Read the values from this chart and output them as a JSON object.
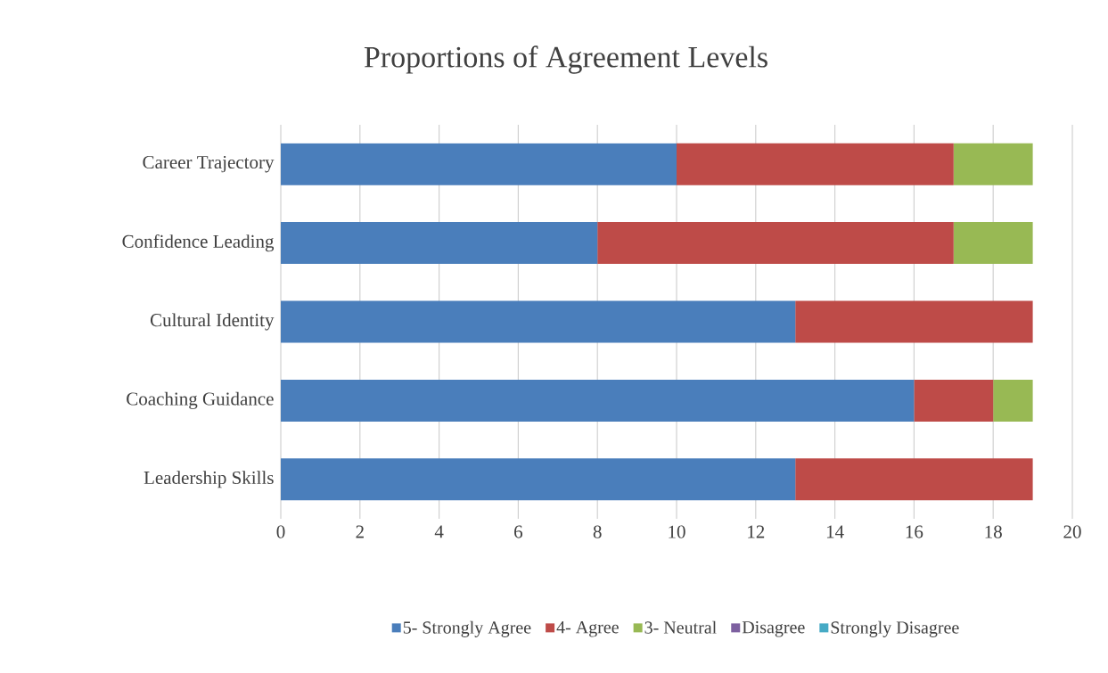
{
  "chart_data": {
    "type": "bar",
    "orientation": "horizontal",
    "stacked": true,
    "title": "Proportions of Agreement Levels",
    "categories": [
      "Career Trajectory",
      "Confidence Leading",
      "Cultural Identity",
      "Coaching Guidance",
      "Leadership Skills"
    ],
    "series": [
      {
        "name": "5- Strongly Agree",
        "color": "#4a7ebb",
        "values": [
          10,
          8,
          13,
          16,
          13
        ]
      },
      {
        "name": "4- Agree",
        "color": "#be4b48",
        "values": [
          7,
          9,
          6,
          2,
          6
        ]
      },
      {
        "name": "3- Neutral",
        "color": "#98b954",
        "values": [
          2,
          2,
          0,
          1,
          0
        ]
      },
      {
        "name": "Disagree",
        "color": "#7d60a0",
        "values": [
          0,
          0,
          0,
          0,
          0
        ]
      },
      {
        "name": "Strongly Disagree",
        "color": "#46aac5",
        "values": [
          0,
          0,
          0,
          0,
          0
        ]
      }
    ],
    "xlim": [
      0,
      20
    ],
    "xticks": [
      0,
      2,
      4,
      6,
      8,
      10,
      12,
      14,
      16,
      18,
      20
    ],
    "grid": "x",
    "legend": "bottom"
  }
}
